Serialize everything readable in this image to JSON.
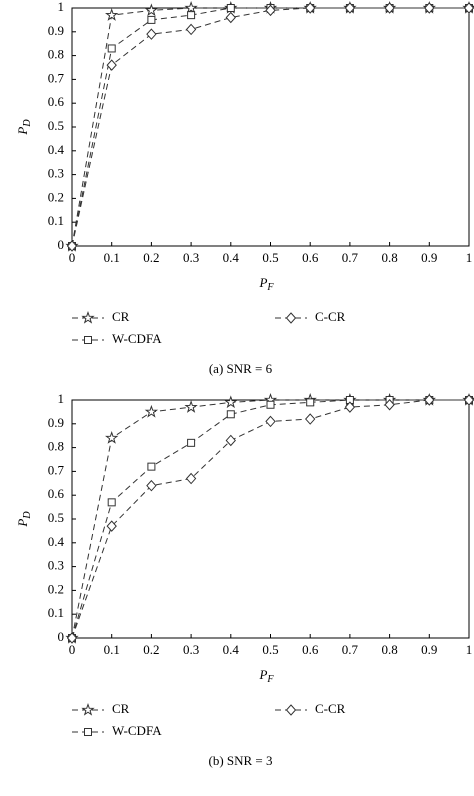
{
  "chart_data": [
    {
      "type": "line",
      "xlabel": "P",
      "xlabel_sub": "F",
      "ylabel": "P",
      "ylabel_sub": "D",
      "caption": "(a)  SNR = 6",
      "x": [
        0,
        0.1,
        0.2,
        0.3,
        0.4,
        0.5,
        0.6,
        0.7,
        0.8,
        0.9,
        1
      ],
      "xlim": [
        0,
        1
      ],
      "ylim": [
        0,
        1
      ],
      "xticks": [
        0,
        0.1,
        0.2,
        0.3,
        0.4,
        0.5,
        0.6,
        0.7,
        0.8,
        0.9,
        1
      ],
      "yticks": [
        0,
        0.1,
        0.2,
        0.3,
        0.4,
        0.5,
        0.6,
        0.7,
        0.8,
        0.9,
        1
      ],
      "series": [
        {
          "name": "CR",
          "color": "#333333",
          "marker": "star",
          "values": [
            0,
            0.97,
            0.99,
            1,
            1,
            1,
            1,
            1,
            1,
            1,
            1
          ]
        },
        {
          "name": "W-CDFA",
          "color": "#333333",
          "marker": "square",
          "values": [
            0,
            0.83,
            0.95,
            0.97,
            1,
            1,
            1,
            1,
            1,
            1,
            1
          ]
        },
        {
          "name": "C-CR",
          "color": "#333333",
          "marker": "diamond",
          "values": [
            0,
            0.76,
            0.89,
            0.91,
            0.96,
            0.99,
            1,
            1,
            1,
            1,
            1
          ]
        }
      ]
    },
    {
      "type": "line",
      "xlabel": "P",
      "xlabel_sub": "F",
      "ylabel": "P",
      "ylabel_sub": "D",
      "caption": "(b)  SNR = 3",
      "x": [
        0,
        0.1,
        0.2,
        0.3,
        0.4,
        0.5,
        0.6,
        0.7,
        0.8,
        0.9,
        1
      ],
      "xlim": [
        0,
        1
      ],
      "ylim": [
        0,
        1
      ],
      "xticks": [
        0,
        0.1,
        0.2,
        0.3,
        0.4,
        0.5,
        0.6,
        0.7,
        0.8,
        0.9,
        1
      ],
      "yticks": [
        0,
        0.1,
        0.2,
        0.3,
        0.4,
        0.5,
        0.6,
        0.7,
        0.8,
        0.9,
        1
      ],
      "series": [
        {
          "name": "CR",
          "color": "#333333",
          "marker": "star",
          "values": [
            0,
            0.84,
            0.95,
            0.97,
            0.99,
            1,
            1,
            1,
            1,
            1,
            1
          ]
        },
        {
          "name": "W-CDFA",
          "color": "#333333",
          "marker": "square",
          "values": [
            0,
            0.57,
            0.72,
            0.82,
            0.94,
            0.98,
            0.99,
            1,
            1,
            1,
            1
          ]
        },
        {
          "name": "C-CR",
          "color": "#333333",
          "marker": "diamond",
          "values": [
            0,
            0.47,
            0.64,
            0.67,
            0.83,
            0.91,
            0.92,
            0.97,
            0.98,
            1,
            1
          ]
        }
      ]
    }
  ]
}
